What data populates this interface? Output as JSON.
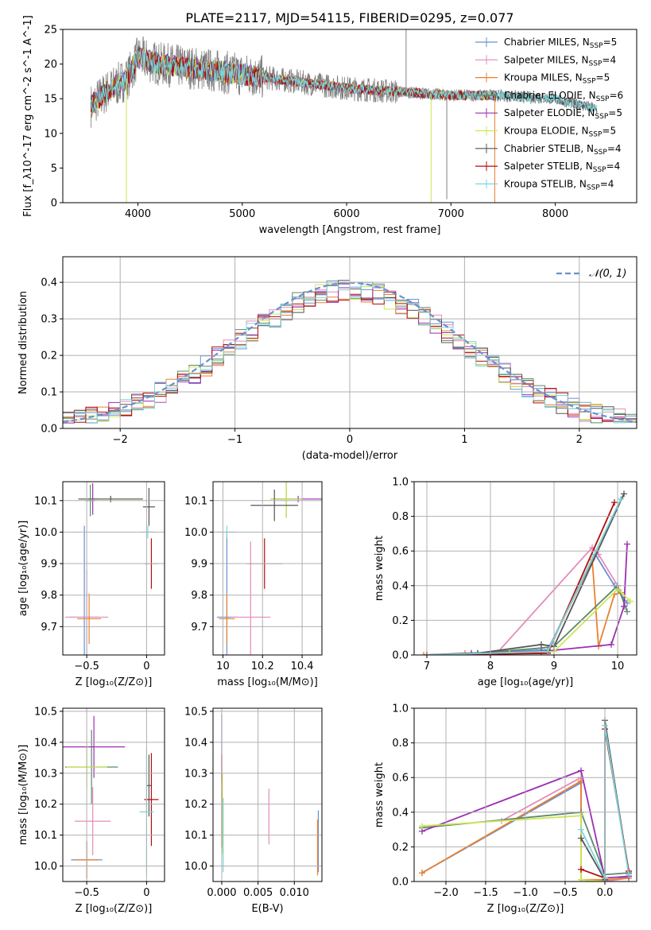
{
  "title": "PLATE=2117, MJD=54115, FIBERID=0295, z=0.077",
  "colors": {
    "chabrier_miles": "#6a8fd0",
    "salpeter_miles": "#e58bbb",
    "kroupa_miles": "#e8802f",
    "chabrier_elodie": "#5a8a6a",
    "salpeter_elodie": "#9b2fb0",
    "kroupa_elodie": "#cde655",
    "chabrier_stelib": "#555555",
    "salpeter_stelib": "#b30d0d",
    "kroupa_stelib": "#7ad6dc",
    "spectrum": "#808080",
    "grid": "#b0b0b0"
  },
  "chart_data": [
    {
      "type": "line",
      "panel": "spectrum",
      "xlabel": "wavelength [Angstrom, rest frame]",
      "ylabel": "Flux [f_λ10^-17 erg cm^-2 s^-1 A^-1]",
      "xlim": [
        3280,
        8780
      ],
      "ylim": [
        0,
        25
      ],
      "xticks": [
        "4000",
        "5000",
        "6000",
        "7000",
        "8000"
      ],
      "yticks": [
        "0",
        "5",
        "10",
        "15",
        "20",
        "25"
      ],
      "grid": false,
      "legend_position": "top-right",
      "legend": [
        {
          "label": "Chabrier MILES, N",
          "sub": "SSP",
          "n": "=5",
          "color_key": "chabrier_miles"
        },
        {
          "label": "Salpeter MILES, N",
          "sub": "SSP",
          "n": "=4",
          "color_key": "salpeter_miles"
        },
        {
          "label": "Kroupa MILES, N",
          "sub": "SSP",
          "n": "=5",
          "color_key": "kroupa_miles"
        },
        {
          "label": "Chabrier ELODIE, N",
          "sub": "SSP",
          "n": "=6",
          "color_key": "chabrier_elodie"
        },
        {
          "label": "Salpeter ELODIE, N",
          "sub": "SSP",
          "n": "=5",
          "color_key": "salpeter_elodie"
        },
        {
          "label": "Kroupa ELODIE, N",
          "sub": "SSP",
          "n": "=5",
          "color_key": "kroupa_elodie"
        },
        {
          "label": "Chabrier STELIB, N",
          "sub": "SSP",
          "n": "=4",
          "color_key": "chabrier_stelib"
        },
        {
          "label": "Salpeter STELIB, N",
          "sub": "SSP",
          "n": "=4",
          "color_key": "salpeter_stelib"
        },
        {
          "label": "Kroupa STELIB, N",
          "sub": "SSP",
          "n": "=4",
          "color_key": "kroupa_stelib"
        }
      ],
      "continuum": [
        [
          3550,
          14
        ],
        [
          3700,
          16
        ],
        [
          3900,
          18
        ],
        [
          4000,
          21
        ],
        [
          4200,
          20
        ],
        [
          4500,
          19.5
        ],
        [
          5000,
          18.5
        ],
        [
          5500,
          17.5
        ],
        [
          6000,
          16.5
        ],
        [
          6500,
          16
        ],
        [
          7000,
          15.5
        ],
        [
          7400,
          15.5
        ],
        [
          8000,
          15
        ],
        [
          8400,
          13.5
        ]
      ],
      "model_ranges": {
        "miles_elodie_stelib_end": 7430,
        "full_end": 8400
      },
      "features": [
        {
          "x": 3890,
          "y": 0,
          "series": "kroupa_elodie"
        },
        {
          "x": 6810,
          "y": 0,
          "series": "kroupa_elodie"
        },
        {
          "x": 7420,
          "y": 0,
          "series": "kroupa_miles"
        },
        {
          "x": 6570,
          "y": 25,
          "series": "spectrum"
        },
        {
          "x": 6960,
          "y": 0.5,
          "series": "spectrum"
        }
      ]
    },
    {
      "type": "line",
      "panel": "residual_distribution",
      "xlabel": "(data-model)/error",
      "ylabel": "Normed distribution",
      "xlim": [
        -2.5,
        2.5
      ],
      "ylim": [
        0,
        0.47
      ],
      "xticks": [
        -2,
        -1,
        0,
        1,
        2
      ],
      "yticks": [
        0.0,
        0.1,
        0.2,
        0.3,
        0.4
      ],
      "grid": true,
      "legend_position": "top-right",
      "legend_label": "𝒩(0, 1)",
      "gaussian": {
        "mean": 0,
        "sigma": 1,
        "color": "#6a8fd0"
      },
      "histogram_bin_width": 0.1
    },
    {
      "type": "scatter",
      "panel": "age_vs_Z",
      "xlabel": "Z [log10(Z/Z⊙)]",
      "ylabel": "age  [log10(age/yr)]",
      "xlim": [
        -0.7,
        0.15
      ],
      "ylim": [
        9.61,
        10.16
      ],
      "xticks": [
        -0.5,
        0.0
      ],
      "yticks": [
        9.7,
        9.8,
        9.9,
        10.0,
        10.1
      ],
      "grid": true,
      "points": [
        {
          "series": "chabrier_miles",
          "x": -0.52,
          "xerr": 0.12,
          "y": 9.73,
          "yerr": 0.29
        },
        {
          "series": "salpeter_miles",
          "x": -0.5,
          "xerr": 0.18,
          "y": 9.73,
          "yerr": 0.15
        },
        {
          "series": "kroupa_miles",
          "x": -0.48,
          "xerr": 0.1,
          "y": 9.725,
          "yerr": 0.08
        },
        {
          "series": "chabrier_elodie",
          "x": -0.47,
          "xerr": 0.04,
          "y": 10.1,
          "yerr": 0.05
        },
        {
          "series": "salpeter_elodie",
          "x": -0.45,
          "xerr": 0.04,
          "y": 10.105,
          "yerr": 0.05
        },
        {
          "series": "kroupa_elodie",
          "x": -0.3,
          "xerr": 0.26,
          "y": 10.105,
          "yerr": 0.01
        },
        {
          "series": "chabrier_stelib",
          "x": -0.3,
          "xerr": 0.27,
          "y": 10.105,
          "yerr": 0.01
        },
        {
          "series": "chabrier_stelib",
          "x": 0.02,
          "xerr": 0.05,
          "y": 10.08,
          "yerr": 0.06
        },
        {
          "series": "salpeter_stelib",
          "x": 0.04,
          "xerr": 0.06,
          "y": 9.9,
          "yerr": 0.08
        },
        {
          "series": "kroupa_stelib",
          "x": 0.01,
          "xerr": 0.06,
          "y": 10.0,
          "yerr": 0.02
        }
      ]
    },
    {
      "type": "scatter",
      "panel": "age_vs_mass",
      "xlabel": "mass [log10(M/M⊙)]",
      "ylabel": "",
      "xlim": [
        9.95,
        10.5
      ],
      "ylim": [
        9.61,
        10.16
      ],
      "xticks": [
        10.0,
        10.2,
        10.4
      ],
      "yticks": [
        9.7,
        9.8,
        9.9,
        10.0,
        10.1
      ],
      "grid": true,
      "points": [
        {
          "series": "chabrier_miles",
          "x": 10.02,
          "xerr": 0.05,
          "y": 9.73,
          "yerr": 0.27
        },
        {
          "series": "salpeter_miles",
          "x": 10.14,
          "xerr": 0.1,
          "y": 9.73,
          "yerr": 0.24
        },
        {
          "series": "kroupa_miles",
          "x": 10.02,
          "xerr": 0.04,
          "y": 9.725,
          "yerr": 0.08
        },
        {
          "series": "chabrier_elodie",
          "x": 10.32,
          "xerr": 0.08,
          "y": 10.105,
          "yerr": 0.06
        },
        {
          "series": "salpeter_elodie",
          "x": 10.38,
          "xerr": 0.12,
          "y": 10.105,
          "yerr": 0.01
        },
        {
          "series": "kroupa_elodie",
          "x": 10.32,
          "xerr": 0.08,
          "y": 10.105,
          "yerr": 0.06
        },
        {
          "series": "chabrier_stelib",
          "x": 10.26,
          "xerr": 0.12,
          "y": 10.085,
          "yerr": 0.05
        },
        {
          "series": "salpeter_stelib",
          "x": 10.21,
          "xerr": 0.09,
          "y": 9.9,
          "yerr": 0.08
        },
        {
          "series": "kroupa_stelib",
          "x": 10.02,
          "xerr": 0.05,
          "y": 10.0,
          "yerr": 0.02
        }
      ]
    },
    {
      "type": "line",
      "panel": "mass_weight_vs_age",
      "xlabel": "age  [log10(age/yr)]",
      "ylabel": "mass weight",
      "xlim": [
        6.8,
        10.3
      ],
      "ylim": [
        0,
        1
      ],
      "xticks": [
        7,
        8,
        9,
        10
      ],
      "yticks": [
        0.0,
        0.2,
        0.4,
        0.6,
        0.8,
        1.0
      ],
      "grid": true,
      "series": [
        {
          "name": "chabrier_miles",
          "x": [
            7.0,
            7.7,
            8.9,
            9.65,
            9.95,
            10.15
          ],
          "y": [
            0.0,
            0.01,
            0.03,
            0.58,
            0.4,
            0.3
          ]
        },
        {
          "name": "salpeter_miles",
          "x": [
            7.0,
            8.1,
            9.6,
            9.7,
            10.0
          ],
          "y": [
            0.0,
            0.01,
            0.62,
            0.58,
            0.4
          ]
        },
        {
          "name": "kroupa_miles",
          "x": [
            6.95,
            7.6,
            8.9,
            9.6,
            9.7,
            9.95,
            10.05
          ],
          "y": [
            0.0,
            0.01,
            0.02,
            0.55,
            0.05,
            0.35,
            0.36
          ]
        },
        {
          "name": "chabrier_elodie",
          "x": [
            7.0,
            7.8,
            8.8,
            9.0,
            10.0,
            10.15
          ],
          "y": [
            0.0,
            0.01,
            0.04,
            0.05,
            0.4,
            0.25
          ]
        },
        {
          "name": "salpeter_elodie",
          "x": [
            7.0,
            7.7,
            8.8,
            9.9,
            10.1,
            10.15
          ],
          "y": [
            0.0,
            0.01,
            0.02,
            0.06,
            0.28,
            0.64
          ]
        },
        {
          "name": "kroupa_elodie",
          "x": [
            7.0,
            8.3,
            9.0,
            10.0,
            10.2
          ],
          "y": [
            0.0,
            0.01,
            0.02,
            0.38,
            0.31
          ]
        },
        {
          "name": "chabrier_stelib",
          "x": [
            7.0,
            7.8,
            8.8,
            9.0,
            10.1
          ],
          "y": [
            0.0,
            0.01,
            0.06,
            0.05,
            0.93
          ]
        },
        {
          "name": "salpeter_stelib",
          "x": [
            7.0,
            8.9,
            9.95
          ],
          "y": [
            0.0,
            0.01,
            0.88
          ]
        },
        {
          "name": "kroupa_stelib",
          "x": [
            7.0,
            8.9,
            10.05
          ],
          "y": [
            0.0,
            0.02,
            0.9
          ]
        }
      ]
    },
    {
      "type": "scatter",
      "panel": "mass_vs_Z",
      "xlabel": "Z [log10(Z/Z⊙)]",
      "ylabel": "mass [log10(M/M⊙)]",
      "xlim": [
        -0.7,
        0.15
      ],
      "ylim": [
        9.95,
        10.51
      ],
      "xticks": [
        -0.5,
        0.0
      ],
      "yticks": [
        10.0,
        10.1,
        10.2,
        10.3,
        10.4,
        10.5
      ],
      "grid": true,
      "points": [
        {
          "series": "chabrier_miles",
          "x": -0.5,
          "xerr": 0.13,
          "y": 10.02,
          "yerr": 0.06
        },
        {
          "series": "salpeter_miles",
          "x": -0.45,
          "xerr": 0.15,
          "y": 10.145,
          "yerr": 0.11
        },
        {
          "series": "kroupa_miles",
          "x": -0.5,
          "xerr": 0.1,
          "y": 10.02,
          "yerr": 0.06
        },
        {
          "series": "chabrier_elodie",
          "x": -0.46,
          "xerr": 0.22,
          "y": 10.32,
          "yerr": 0.12
        },
        {
          "series": "salpeter_elodie",
          "x": -0.44,
          "xerr": 0.26,
          "y": 10.385,
          "yerr": 0.1
        },
        {
          "series": "kroupa_elodie",
          "x": -0.5,
          "xerr": 0.17,
          "y": 10.32,
          "yerr": 0.07
        },
        {
          "series": "chabrier_stelib",
          "x": 0.02,
          "xerr": 0.02,
          "y": 10.26,
          "yerr": 0.1
        },
        {
          "series": "salpeter_stelib",
          "x": 0.04,
          "xerr": 0.06,
          "y": 10.215,
          "yerr": 0.15
        },
        {
          "series": "kroupa_stelib",
          "x": 0.0,
          "xerr": 0.06,
          "y": 10.175,
          "yerr": 0.2
        }
      ]
    },
    {
      "type": "scatter",
      "panel": "mass_vs_EBV",
      "xlabel": "E(B-V)",
      "ylabel": "",
      "xlim": [
        -0.0012,
        0.0138
      ],
      "ylim": [
        9.95,
        10.51
      ],
      "xticks": [
        "0.000",
        "0.005",
        "0.010"
      ],
      "xtick_values": [
        0.0,
        0.005,
        0.01
      ],
      "yticks": [
        10.0,
        10.1,
        10.2,
        10.3,
        10.4,
        10.5
      ],
      "grid": true,
      "points": [
        {
          "series": "salpeter_elodie",
          "x": 0.0,
          "y": 10.38,
          "yerr": 0.11
        },
        {
          "series": "kroupa_elodie",
          "x": 0.0001,
          "y": 10.17,
          "yerr": 0.13
        },
        {
          "series": "salpeter_stelib",
          "x": 0.0,
          "y": 10.21,
          "yerr": 0.15
        },
        {
          "series": "kroupa_stelib",
          "x": 0.0002,
          "y": 10.1,
          "yerr": 0.12
        },
        {
          "series": "salpeter_miles",
          "x": 0.0065,
          "y": 10.16,
          "yerr": 0.09
        },
        {
          "series": "chabrier_miles",
          "x": 0.0133,
          "y": 10.08,
          "yerr": 0.1
        },
        {
          "series": "kroupa_miles",
          "x": 0.0132,
          "y": 10.06,
          "yerr": 0.09
        }
      ]
    },
    {
      "type": "line",
      "panel": "mass_weight_vs_Z",
      "xlabel": "Z [log10(Z/Z⊙)]",
      "ylabel": "mass weight",
      "xlim": [
        -2.4,
        0.4
      ],
      "ylim": [
        0,
        1
      ],
      "xticks": [
        "−2.0",
        "−1.5",
        "−1.0",
        "−0.5",
        "0.0"
      ],
      "xtick_values": [
        -2.0,
        -1.5,
        -1.0,
        -0.5,
        0.0
      ],
      "yticks": [
        0.0,
        0.2,
        0.4,
        0.6,
        0.8,
        1.0
      ],
      "grid": true,
      "series": [
        {
          "name": "chabrier_miles",
          "x": [
            -2.3,
            -0.3,
            -0.3,
            0.0,
            0.3
          ],
          "y": [
            0.05,
            0.57,
            0.01,
            0.0,
            0.03
          ]
        },
        {
          "name": "salpeter_miles",
          "x": [
            -1.3,
            -0.3,
            -0.3,
            0.0,
            0.3
          ],
          "y": [
            0.35,
            0.6,
            0.01,
            0.0,
            0.02
          ]
        },
        {
          "name": "kroupa_miles",
          "x": [
            -2.3,
            -0.3,
            -0.3,
            0.0,
            0.3
          ],
          "y": [
            0.05,
            0.58,
            0.01,
            0.01,
            0.02
          ]
        },
        {
          "name": "chabrier_elodie",
          "x": [
            -2.3,
            -0.3,
            0.0,
            0.3
          ],
          "y": [
            0.31,
            0.4,
            0.04,
            0.05
          ]
        },
        {
          "name": "salpeter_elodie",
          "x": [
            -2.3,
            -0.3,
            0.0,
            0.3
          ],
          "y": [
            0.29,
            0.64,
            0.02,
            0.03
          ]
        },
        {
          "name": "kroupa_elodie",
          "x": [
            -2.3,
            -0.3,
            -0.3,
            0.0
          ],
          "y": [
            0.32,
            0.38,
            0.01,
            0.0
          ]
        },
        {
          "name": "chabrier_stelib",
          "x": [
            -0.3,
            0.0,
            0.0,
            0.3
          ],
          "y": [
            0.25,
            0.01,
            0.93,
            0.05
          ]
        },
        {
          "name": "salpeter_stelib",
          "x": [
            -0.3,
            0.0,
            0.0,
            0.3
          ],
          "y": [
            0.07,
            0.02,
            0.88,
            0.06
          ]
        },
        {
          "name": "kroupa_stelib",
          "x": [
            -0.3,
            0.0,
            0.0,
            0.3
          ],
          "y": [
            0.3,
            0.02,
            0.9,
            0.04
          ]
        }
      ]
    }
  ]
}
